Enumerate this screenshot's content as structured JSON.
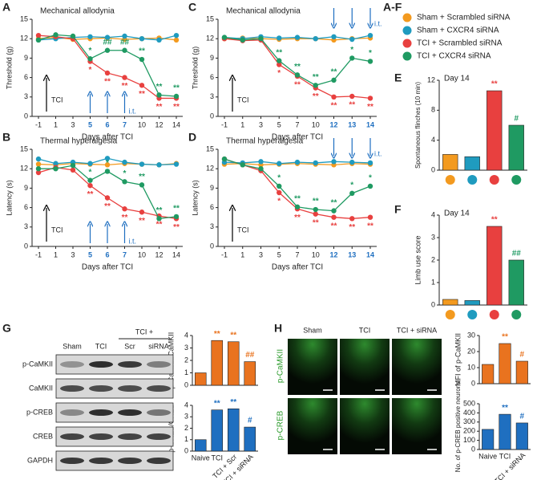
{
  "chart_data": [
    {
      "type": "line",
      "panel": "A",
      "title": "Mechanical allodynia",
      "xlabel": "Days after TCI",
      "ylabel": "Threshold (g)",
      "arrow_label": "TCI",
      "injection_label": "i.t.",
      "injection_arrow": "up",
      "legend_title": "A-F",
      "categories": [
        "-1",
        "1",
        "3",
        "5",
        "6",
        "7",
        "10",
        "12",
        "14"
      ],
      "injection": [
        false,
        false,
        false,
        true,
        true,
        true,
        false,
        false,
        false
      ],
      "ylim": [
        0,
        15
      ],
      "yticks": [
        0,
        3,
        6,
        9,
        12,
        15
      ],
      "series": [
        {
          "name": "Sham + Scrambled siRNA",
          "color": "#f39a1f",
          "values": [
            12,
            12.2,
            11.9,
            12,
            12.1,
            11.9,
            12,
            12.1,
            11.8
          ]
        },
        {
          "name": "Sham + CXCR4 siRNA",
          "color": "#1f9bbf",
          "values": [
            11.8,
            12,
            12.2,
            12.3,
            12.2,
            12.4,
            12,
            11.8,
            12.5
          ]
        },
        {
          "name": "TCI + Scrambled siRNA",
          "color": "#e8403f",
          "values": [
            12.5,
            12.3,
            12,
            8.5,
            6.7,
            6,
            4.8,
            2.8,
            2.8
          ],
          "labels": [
            null,
            null,
            null,
            "*",
            "**",
            "**",
            "**",
            "**",
            "**"
          ]
        },
        {
          "name": "TCI + CXCR4 siRNA",
          "color": "#1f9a62",
          "values": [
            11.8,
            12.6,
            12.4,
            8.9,
            10.2,
            10.2,
            8.8,
            3.3,
            3.1
          ],
          "labels": [
            null,
            null,
            null,
            "*",
            "##",
            "##",
            "**",
            "**",
            "**"
          ]
        }
      ]
    },
    {
      "type": "line",
      "panel": "C",
      "title": "Mechanical allodynia",
      "xlabel": "Days after TCI",
      "ylabel": "Threshold (g)",
      "arrow_label": "TCI",
      "injection_label": "i.t.",
      "injection_arrow": "down",
      "categories": [
        "-1",
        "1",
        "3",
        "5",
        "7",
        "10",
        "12",
        "13",
        "14"
      ],
      "injection": [
        false,
        false,
        false,
        false,
        false,
        false,
        true,
        true,
        true
      ],
      "ylim": [
        0,
        15
      ],
      "yticks": [
        0,
        3,
        6,
        9,
        12,
        15
      ],
      "series": [
        {
          "color": "#f39a1f",
          "values": [
            12,
            12.1,
            12,
            11.9,
            12,
            12,
            11.8,
            12,
            12.1
          ]
        },
        {
          "color": "#1f9bbf",
          "values": [
            12.2,
            12,
            12.3,
            12.1,
            12.2,
            12,
            12.3,
            11.9,
            12.5
          ]
        },
        {
          "color": "#e8403f",
          "values": [
            12,
            11.7,
            11.8,
            8,
            6.2,
            4.4,
            3,
            3.1,
            2.8
          ],
          "labels": [
            null,
            null,
            null,
            "*",
            "**",
            "**",
            "**",
            "**",
            "**"
          ]
        },
        {
          "color": "#1f9a62",
          "values": [
            12.2,
            11.8,
            12,
            8.6,
            6.4,
            4.8,
            5.6,
            9,
            8.5
          ],
          "labels": [
            null,
            null,
            null,
            "**",
            "**",
            "**",
            "**",
            "*",
            "*"
          ]
        }
      ]
    },
    {
      "type": "line",
      "panel": "B",
      "title": "Thermal hyperalgesia",
      "xlabel": "Days after TCI",
      "ylabel": "Latency (s)",
      "arrow_label": "TCI",
      "injection_label": "i.t.",
      "injection_arrow": "up",
      "categories": [
        "-1",
        "1",
        "3",
        "5",
        "6",
        "7",
        "10",
        "12",
        "14"
      ],
      "injection": [
        false,
        false,
        false,
        true,
        true,
        true,
        false,
        false,
        false
      ],
      "ylim": [
        0,
        15
      ],
      "yticks": [
        0,
        3,
        6,
        9,
        12,
        15
      ],
      "series": [
        {
          "color": "#f39a1f",
          "values": [
            12.7,
            12.6,
            12.8,
            12.7,
            12.6,
            12.8,
            12.7,
            12.6,
            12.8
          ]
        },
        {
          "color": "#1f9bbf",
          "values": [
            13.5,
            12.8,
            13,
            12.8,
            13.6,
            13,
            12.7,
            12.6,
            12.7
          ]
        },
        {
          "color": "#e8403f",
          "values": [
            11.4,
            12.2,
            11.8,
            9.4,
            7.5,
            5.8,
            5.3,
            4.7,
            4.3
          ],
          "labels": [
            null,
            null,
            null,
            "**",
            "**",
            "**",
            "**",
            "**",
            "**"
          ]
        },
        {
          "color": "#1f9a62",
          "values": [
            12,
            12,
            12.5,
            10.2,
            11.6,
            10,
            9.5,
            4.3,
            4.6
          ],
          "labels": [
            null,
            null,
            null,
            "*",
            "*",
            "*",
            "**",
            "**",
            "**"
          ]
        }
      ]
    },
    {
      "type": "line",
      "panel": "D",
      "title": "Thermal hyperalgesia",
      "xlabel": "Days after TCI",
      "ylabel": "Latency (s)",
      "arrow_label": "TCI",
      "injection_label": "i.t.",
      "injection_arrow": "down",
      "categories": [
        "-1",
        "1",
        "3",
        "5",
        "7",
        "10",
        "12",
        "13",
        "14"
      ],
      "injection": [
        false,
        false,
        false,
        false,
        false,
        false,
        true,
        true,
        true
      ],
      "ylim": [
        0,
        15
      ],
      "yticks": [
        0,
        3,
        6,
        9,
        12,
        15
      ],
      "series": [
        {
          "color": "#f39a1f",
          "values": [
            12.7,
            12.8,
            12.6,
            12.7,
            12.8,
            12.7,
            12.6,
            12.8,
            12.7
          ]
        },
        {
          "color": "#1f9bbf",
          "values": [
            13,
            12.9,
            13.1,
            12.8,
            13,
            12.9,
            13.1,
            13,
            12.9
          ]
        },
        {
          "color": "#e8403f",
          "values": [
            13.5,
            12.6,
            11.7,
            8.3,
            5.8,
            5,
            4.5,
            4.3,
            4.5
          ],
          "labels": [
            null,
            null,
            null,
            "*",
            "**",
            "**",
            "**",
            "**",
            "**"
          ]
        },
        {
          "color": "#1f9a62",
          "values": [
            13.5,
            12.6,
            12,
            9.3,
            6.1,
            5.7,
            5.5,
            8.2,
            9.3
          ],
          "labels": [
            null,
            null,
            null,
            "*",
            "**",
            "**",
            "**",
            "*",
            "*"
          ]
        }
      ]
    },
    {
      "type": "bar",
      "panel": "E",
      "subtitle": "Day 14",
      "ylabel": "Spontaneous flinches (10 min)",
      "markers": true,
      "categories": [
        null,
        null,
        null,
        null
      ],
      "values": [
        2.1,
        1.8,
        10.6,
        6
      ],
      "labels": [
        null,
        null,
        "**",
        "#"
      ],
      "colors": [
        "#f39a1f",
        "#1f9bbf",
        "#e8403f",
        "#1f9a62"
      ],
      "ylim": [
        0,
        12
      ],
      "yticks": [
        0,
        4,
        8,
        12
      ]
    },
    {
      "type": "bar",
      "panel": "F",
      "subtitle": "Day 14",
      "ylabel": "Limb use score",
      "markers": true,
      "categories": [
        null,
        null,
        null,
        null
      ],
      "values": [
        0.25,
        0.2,
        3.5,
        2
      ],
      "labels": [
        null,
        null,
        "**",
        "##"
      ],
      "colors": [
        "#f39a1f",
        "#1f9bbf",
        "#e8403f",
        "#1f9a62"
      ],
      "ylim": [
        0,
        4
      ],
      "yticks": [
        0,
        1,
        2,
        3,
        4
      ]
    },
    {
      "type": "bar",
      "ylabel": "p-CaMKII/CaMKII",
      "categories": [
        null,
        null,
        null,
        null
      ],
      "values": [
        1,
        3.6,
        3.5,
        1.9
      ],
      "labels": [
        null,
        "**",
        "**",
        "##"
      ],
      "color": "#e9731f",
      "ylim": [
        0,
        4
      ],
      "yticks": [
        0,
        1,
        2,
        3,
        4
      ]
    },
    {
      "type": "bar",
      "ylabel": "p-CREB/CREB",
      "categories": [
        "Naive",
        "TCI",
        "TCI + Scr",
        "TCI + siRNA"
      ],
      "values": [
        1,
        3.6,
        3.7,
        2.1
      ],
      "labels": [
        null,
        "**",
        "**",
        "#"
      ],
      "color": "#1f6fc0",
      "ylim": [
        0,
        4
      ],
      "yticks": [
        0,
        1,
        2,
        3,
        4
      ]
    },
    {
      "type": "bar",
      "ylabel": "MFI of p-CaMKII",
      "categories": [
        null,
        null,
        null
      ],
      "values": [
        12,
        25,
        14
      ],
      "labels": [
        null,
        "**",
        "#"
      ],
      "color": "#e9731f",
      "ylim": [
        0,
        30
      ],
      "yticks": [
        0,
        10,
        20,
        30
      ]
    },
    {
      "type": "bar",
      "ylabel": "No. of p-CREB positive neurons",
      "categories": [
        "Naive",
        "TCI",
        "TCI + siRNA"
      ],
      "values": [
        220,
        385,
        290
      ],
      "labels": [
        null,
        "**",
        "#"
      ],
      "color": "#1f6fc0",
      "ylim": [
        0,
        500
      ],
      "yticks": [
        0,
        100,
        200,
        300,
        400,
        500
      ]
    }
  ],
  "blot": {
    "panel": "G",
    "lanes": [
      "Sham",
      "TCI",
      "Scr",
      "siRNA"
    ],
    "group": "TCI +",
    "rows": [
      "p-CaMKII",
      "CaMKII",
      "p-CREB",
      "CREB",
      "GAPDH"
    ]
  },
  "micrographs": {
    "panel": "H",
    "columns": [
      "Sham",
      "TCI",
      "TCI + siRNA"
    ],
    "rows": [
      "p-CaMKII",
      "p-CREB"
    ]
  }
}
